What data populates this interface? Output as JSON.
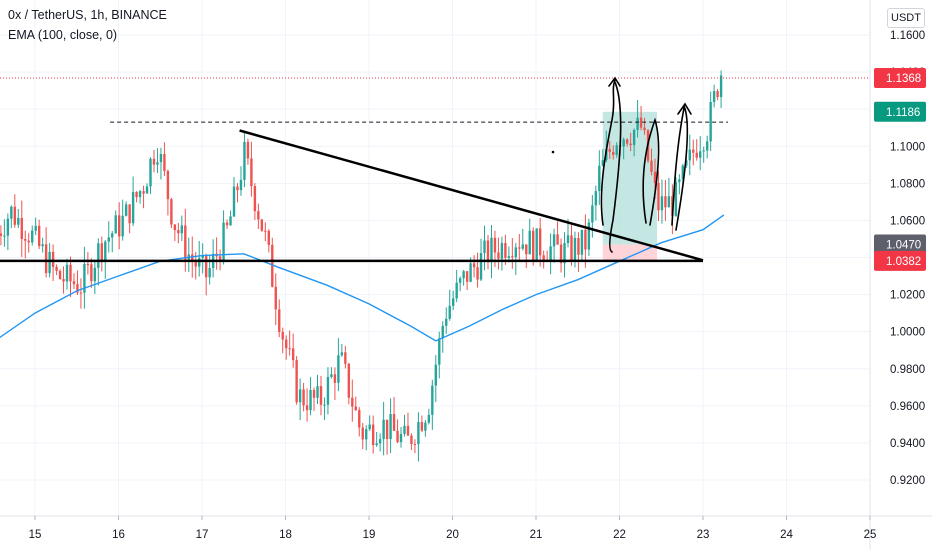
{
  "header": {
    "title": "0x / TetherUS, 1h, BINANCE",
    "indicator": "EMA (100, close, 0)"
  },
  "axis_unit": "USDT",
  "colors": {
    "up": "#26a69a",
    "down": "#ef5350",
    "ema": "#2196f3",
    "last_price_badge": "#f23645",
    "green_badge": "#089981",
    "grey_badge": "#5d606b",
    "drawing": "#000000",
    "long_target_zone": "#b2dfdb",
    "long_stop_zone": "#ffcdd2"
  },
  "price_badges": [
    {
      "value": "1.1368",
      "price": 1.1368,
      "color": "#f23645"
    },
    {
      "value": "1.1186",
      "price": 1.1186,
      "color": "#089981"
    },
    {
      "value": "1.0470",
      "price": 1.047,
      "color": "#5d606b"
    },
    {
      "value": "1.0382",
      "price": 1.0382,
      "color": "#f23645"
    }
  ],
  "chart_data": {
    "type": "candlestick",
    "symbol": "0x / TetherUS",
    "interval": "1h",
    "exchange": "BINANCE",
    "y_axis": {
      "range": [
        0.905,
        1.18
      ],
      "ticks": [
        "1.1600",
        "1.1400",
        "1.1200",
        "1.1000",
        "1.0800",
        "1.0600",
        "1.0400",
        "1.0200",
        "1.0000",
        "0.9800",
        "0.9600",
        "0.9400",
        "0.9200"
      ]
    },
    "x_axis": {
      "range_days": [
        14.55,
        25.3
      ],
      "ticks": [
        "15",
        "16",
        "17",
        "18",
        "19",
        "20",
        "21",
        "22",
        "23",
        "24",
        "25"
      ]
    },
    "key_path": [
      [
        14.55,
        1.05
      ],
      [
        14.75,
        1.065
      ],
      [
        15.0,
        1.052
      ],
      [
        15.3,
        1.03
      ],
      [
        15.6,
        1.025
      ],
      [
        15.85,
        1.048
      ],
      [
        16.1,
        1.06
      ],
      [
        16.35,
        1.08
      ],
      [
        16.5,
        1.102
      ],
      [
        16.7,
        1.06
      ],
      [
        16.9,
        1.04
      ],
      [
        17.1,
        1.03
      ],
      [
        17.35,
        1.055
      ],
      [
        17.55,
        1.095
      ],
      [
        17.8,
        1.05
      ],
      [
        18.0,
        1.0
      ],
      [
        18.2,
        0.965
      ],
      [
        18.45,
        0.962
      ],
      [
        18.7,
        0.985
      ],
      [
        18.95,
        0.945
      ],
      [
        19.2,
        0.95
      ],
      [
        19.5,
        0.94
      ],
      [
        19.75,
        0.96
      ],
      [
        19.95,
        1.01
      ],
      [
        20.2,
        1.03
      ],
      [
        20.45,
        1.042
      ],
      [
        20.8,
        1.05
      ],
      [
        21.1,
        1.046
      ],
      [
        21.4,
        1.043
      ],
      [
        21.65,
        1.048
      ],
      [
        21.8,
        1.085
      ],
      [
        22.0,
        1.105
      ],
      [
        22.3,
        1.11
      ],
      [
        22.5,
        1.068
      ],
      [
        22.7,
        1.07
      ],
      [
        22.95,
        1.1
      ],
      [
        23.1,
        1.11
      ],
      [
        23.25,
        1.14
      ]
    ],
    "ema": [
      [
        14.55,
        0.996
      ],
      [
        15.0,
        1.01
      ],
      [
        15.5,
        1.022
      ],
      [
        16.0,
        1.03
      ],
      [
        16.5,
        1.038
      ],
      [
        17.0,
        1.041
      ],
      [
        17.5,
        1.042
      ],
      [
        17.9,
        1.035
      ],
      [
        18.5,
        1.025
      ],
      [
        19.0,
        1.015
      ],
      [
        19.5,
        1.003
      ],
      [
        19.8,
        0.995
      ],
      [
        20.2,
        1.003
      ],
      [
        20.6,
        1.012
      ],
      [
        21.0,
        1.02
      ],
      [
        21.5,
        1.028
      ],
      [
        22.0,
        1.038
      ],
      [
        22.5,
        1.048
      ],
      [
        23.0,
        1.055
      ],
      [
        23.25,
        1.063
      ]
    ],
    "drawings": {
      "horizontal_support": {
        "price": 1.0382,
        "from": 14.55,
        "to": 23.0
      },
      "descending_trendline": {
        "from": [
          17.45,
          1.1085
        ],
        "to": [
          23.0,
          1.0385
        ]
      },
      "dashed_resistance": {
        "price": 1.113,
        "from": 15.9,
        "to": 23.3
      },
      "long_position": {
        "from": 21.8,
        "to": 22.45,
        "entry": 1.047,
        "target": 1.1186,
        "stop": 1.0382
      }
    }
  }
}
